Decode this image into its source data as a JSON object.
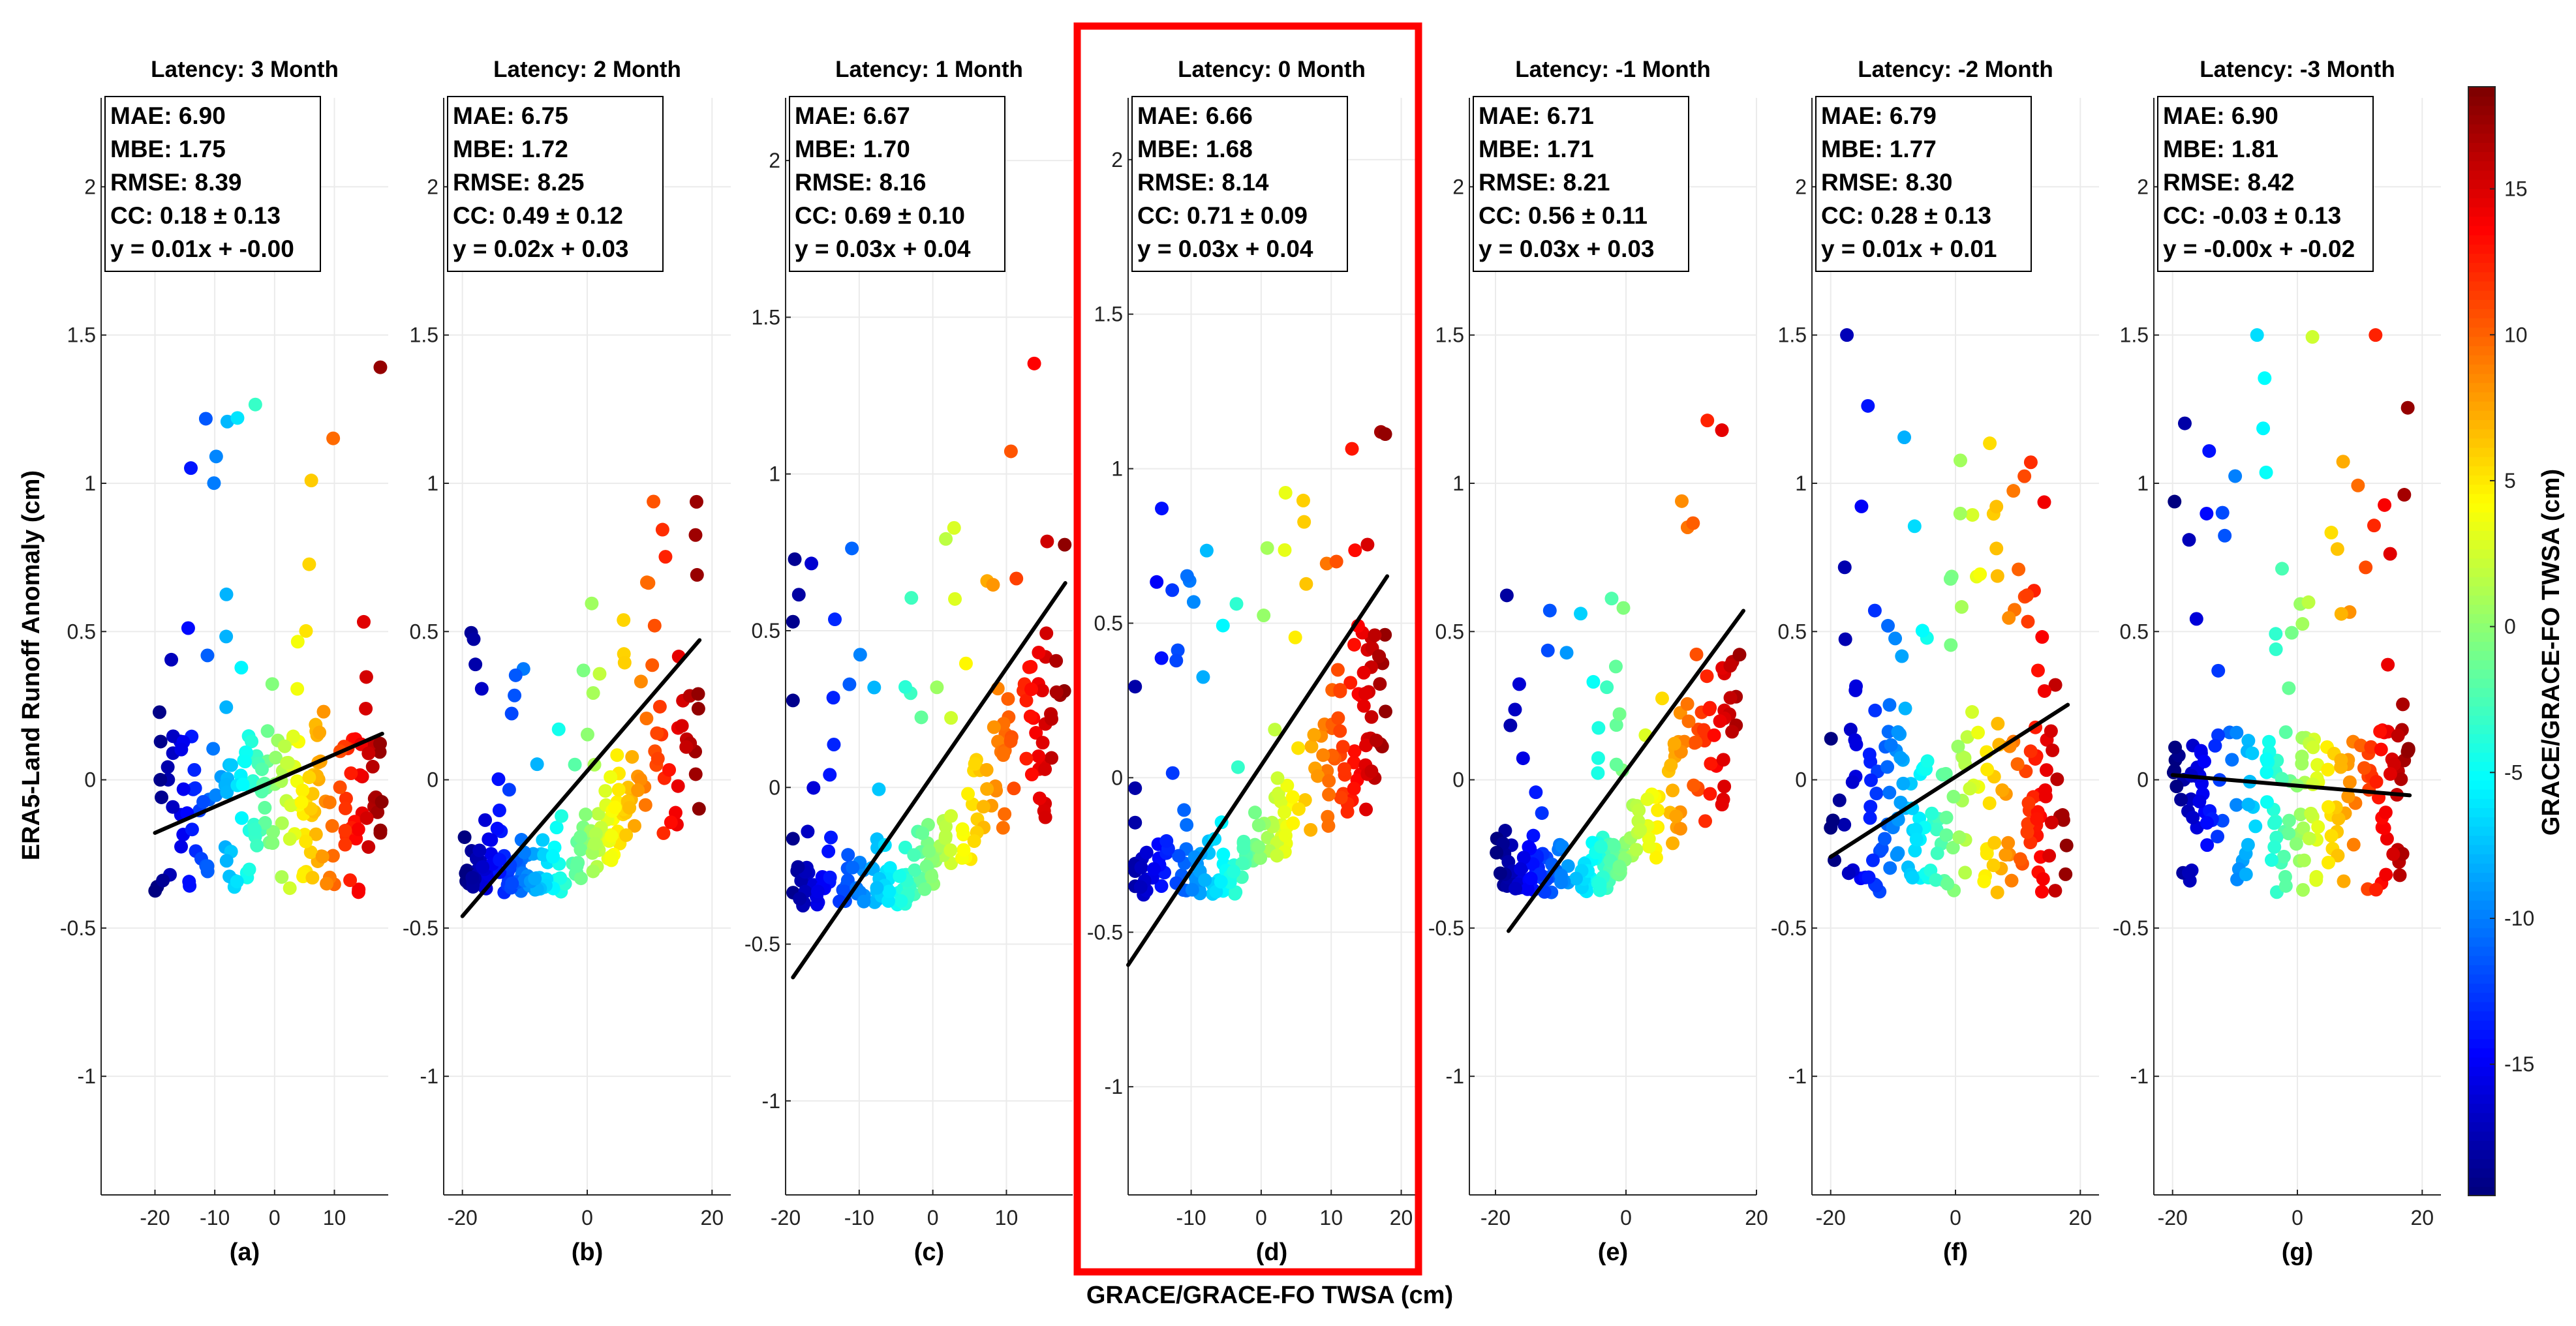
{
  "figure": {
    "xlabel": "GRACE/GRACE-FO TWSA (cm)",
    "ylabel": "ERA5-Land Runoff Anomaly (cm)",
    "colorbar_label": "GRACE/GRACE-FO TWSA (cm)",
    "colorbar_range": [
      -19.5,
      18.5
    ],
    "colorbar_ticks": [
      "-15",
      "-10",
      "-5",
      "0",
      "5",
      "10",
      "15"
    ],
    "highlight_panel": "d",
    "highlight_color": "#ff0000"
  },
  "chart_data": [
    {
      "type": "scatter",
      "panel": "(a)",
      "title": "Latency: 3 Month",
      "xlim": [
        -29,
        19
      ],
      "ylim": [
        -1.4,
        2.3
      ],
      "xticks": [
        -20,
        -10,
        0,
        10
      ],
      "yticks": [
        -1,
        -0.5,
        0,
        0.5,
        1,
        1.5,
        2
      ],
      "xtick_labels": [
        "-20",
        "-10",
        "0",
        "10"
      ],
      "ytick_labels": [
        "-1",
        "-0.5",
        "0",
        "0.5",
        "1",
        "1.5",
        "2"
      ],
      "stats": [
        "MAE: 6.90",
        "MBE: 1.75",
        "RMSE: 8.39",
        "CC: 0.18 ± 0.13",
        "y = 0.01x + -0.00"
      ],
      "fit": {
        "slope": 0.0088,
        "intercept": -0.003,
        "x_range": [
          -20,
          18
        ]
      },
      "r": 0.18,
      "seed": 11
    },
    {
      "type": "scatter",
      "panel": "(b)",
      "title": "Latency: 2 Month",
      "xlim": [
        -23,
        23
      ],
      "ylim": [
        -1.4,
        2.3
      ],
      "xticks": [
        -20,
        0,
        20
      ],
      "yticks": [
        -1,
        -0.5,
        0,
        0.5,
        1,
        1.5,
        2
      ],
      "xtick_labels": [
        "-20",
        "0",
        "20"
      ],
      "ytick_labels": [
        "-1",
        "-0.5",
        "0",
        "0.5",
        "1",
        "1.5",
        "2"
      ],
      "stats": [
        "MAE: 6.75",
        "MBE: 1.72",
        "RMSE: 8.25",
        "CC: 0.49 ± 0.12",
        "y = 0.02x + 0.03"
      ],
      "fit": {
        "slope": 0.0245,
        "intercept": 0.03,
        "x_range": [
          -20,
          18
        ]
      },
      "r": 0.49,
      "seed": 22
    },
    {
      "type": "scatter",
      "panel": "(c)",
      "title": "Latency: 1 Month",
      "xlim": [
        -20,
        19
      ],
      "ylim": [
        -1.3,
        2.2
      ],
      "xticks": [
        -20,
        -10,
        0,
        10
      ],
      "yticks": [
        -1,
        -0.5,
        0,
        0.5,
        1,
        1.5,
        2
      ],
      "xtick_labels": [
        "-20",
        "-10",
        "0",
        "10"
      ],
      "ytick_labels": [
        "-1",
        "-0.5",
        "0",
        "0.5",
        "1",
        "1.5",
        "2"
      ],
      "stats": [
        "MAE: 6.67",
        "MBE: 1.70",
        "RMSE: 8.16",
        "CC: 0.69 ± 0.10",
        "y = 0.03x + 0.04"
      ],
      "fit": {
        "slope": 0.034,
        "intercept": 0.04,
        "x_range": [
          -19,
          18
        ]
      },
      "r": 0.69,
      "seed": 33
    },
    {
      "type": "scatter",
      "panel": "(d)",
      "title": "Latency: 0 Month",
      "xlim": [
        -19,
        22
      ],
      "ylim": [
        -1.35,
        2.2
      ],
      "xticks": [
        -10,
        0,
        10,
        20
      ],
      "yticks": [
        -1,
        -0.5,
        0,
        0.5,
        1,
        1.5,
        2
      ],
      "xtick_labels": [
        "-10",
        "0",
        "10",
        "20"
      ],
      "ytick_labels": [
        "-1",
        "-0.5",
        "0",
        "0.5",
        "1",
        "1.5",
        "2"
      ],
      "stats": [
        "MAE: 6.66",
        "MBE: 1.68",
        "RMSE: 8.14",
        "CC: 0.71 ± 0.09",
        "y = 0.03x + 0.04"
      ],
      "fit": {
        "slope": 0.034,
        "intercept": 0.04,
        "x_range": [
          -19,
          18
        ]
      },
      "r": 0.71,
      "seed": 44
    },
    {
      "type": "scatter",
      "panel": "(e)",
      "title": "Latency: -1 Month",
      "xlim": [
        -24,
        20
      ],
      "ylim": [
        -1.4,
        2.3
      ],
      "xticks": [
        -20,
        0,
        20
      ],
      "yticks": [
        -1,
        -0.5,
        0,
        0.5,
        1,
        1.5,
        2
      ],
      "xtick_labels": [
        "-20",
        "0",
        "20"
      ],
      "ytick_labels": [
        "-1",
        "-0.5",
        "0",
        "0.5",
        "1",
        "1.5",
        "2"
      ],
      "stats": [
        "MAE: 6.71",
        "MBE: 1.71",
        "RMSE: 8.21",
        "CC: 0.56 ± 0.11",
        "y = 0.03x + 0.03"
      ],
      "fit": {
        "slope": 0.03,
        "intercept": 0.03,
        "x_range": [
          -18,
          18
        ]
      },
      "r": 0.56,
      "seed": 55
    },
    {
      "type": "scatter",
      "panel": "(f)",
      "title": "Latency: -2 Month",
      "xlim": [
        -23,
        23
      ],
      "ylim": [
        -1.4,
        2.3
      ],
      "xticks": [
        -20,
        0,
        20
      ],
      "yticks": [
        -1,
        -0.5,
        0,
        0.5,
        1,
        1.5,
        2
      ],
      "xtick_labels": [
        "-20",
        "0",
        "20"
      ],
      "ytick_labels": [
        "-1",
        "-0.5",
        "0",
        "0.5",
        "1",
        "1.5",
        "2"
      ],
      "stats": [
        "MAE: 6.79",
        "MBE: 1.77",
        "RMSE: 8.30",
        "CC: 0.28 ± 0.13",
        "y = 0.01x + 0.01"
      ],
      "fit": {
        "slope": 0.0135,
        "intercept": 0.01,
        "x_range": [
          -20,
          18
        ]
      },
      "r": 0.28,
      "seed": 66
    },
    {
      "type": "scatter",
      "panel": "(g)",
      "title": "Latency: -3 Month",
      "xlim": [
        -23,
        23
      ],
      "ylim": [
        -1.4,
        2.3
      ],
      "xticks": [
        -20,
        0,
        20
      ],
      "yticks": [
        -1,
        -0.5,
        0,
        0.5,
        1,
        1.5,
        2
      ],
      "xtick_labels": [
        "-20",
        "0",
        "20"
      ],
      "ytick_labels": [
        "-1",
        "-0.5",
        "0",
        "0.5",
        "1",
        "1.5",
        "2"
      ],
      "stats": [
        "MAE: 6.90",
        "MBE: 1.81",
        "RMSE: 8.42",
        "CC: -0.03 ± 0.13",
        "y = -0.00x + -0.02"
      ],
      "fit": {
        "slope": -0.0018,
        "intercept": -0.02,
        "x_range": [
          -20,
          18
        ]
      },
      "r": -0.03,
      "seed": 77
    }
  ]
}
